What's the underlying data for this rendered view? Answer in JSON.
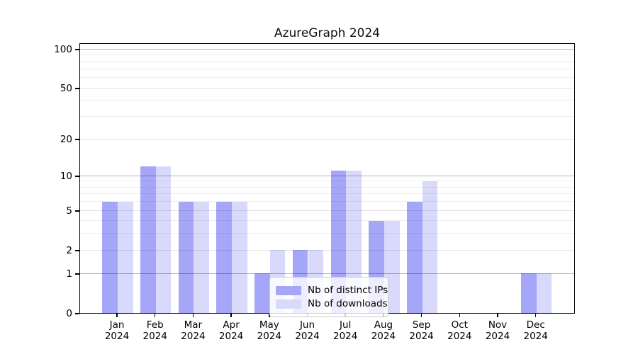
{
  "window": {
    "background_color": "#ffffff"
  },
  "chart_data": {
    "type": "bar",
    "title": "AzureGraph 2024",
    "categories": [
      "Jan",
      "Feb",
      "Mar",
      "Apr",
      "May",
      "Jun",
      "Jul",
      "Aug",
      "Sep",
      "Oct",
      "Nov",
      "Dec"
    ],
    "category_year_line": "2024",
    "series": [
      {
        "name": "Nb of distinct IPs",
        "fill": "rgba(0,0,235,0.35)",
        "legend_color": "#a6a6f8",
        "values": [
          6,
          12,
          6,
          6,
          1,
          2,
          11,
          4,
          6,
          0,
          0,
          1
        ]
      },
      {
        "name": "Nb of downloads",
        "fill": "rgba(0,0,235,0.15)",
        "legend_color": "#d9d9fc",
        "values": [
          6,
          12,
          6,
          6,
          2,
          2,
          11,
          4,
          9,
          0,
          0,
          1
        ]
      }
    ],
    "xlabel": "",
    "ylabel": "",
    "yscale": "log1p",
    "ylim": [
      0,
      112
    ],
    "yticks": [
      0,
      1,
      2,
      5,
      10,
      20,
      50,
      100
    ],
    "gridlines": {
      "major": [
        1,
        10,
        100
      ],
      "labeled_minor": [
        2,
        5,
        20,
        50
      ],
      "minor": [
        3,
        4,
        6,
        7,
        8,
        9,
        30,
        40,
        60,
        70,
        80,
        90
      ]
    },
    "grid_on": true,
    "legend": {
      "position": "lower center inside",
      "entries": [
        "Nb of distinct IPs",
        "Nb of downloads"
      ]
    },
    "colors": {
      "spine": "#000000",
      "major_grid": "#b3b3b3",
      "minor_grid": "#efefef",
      "bar_dark_on_white": "#a6a6f8",
      "bar_light_on_white": "#d9d9fc"
    }
  }
}
